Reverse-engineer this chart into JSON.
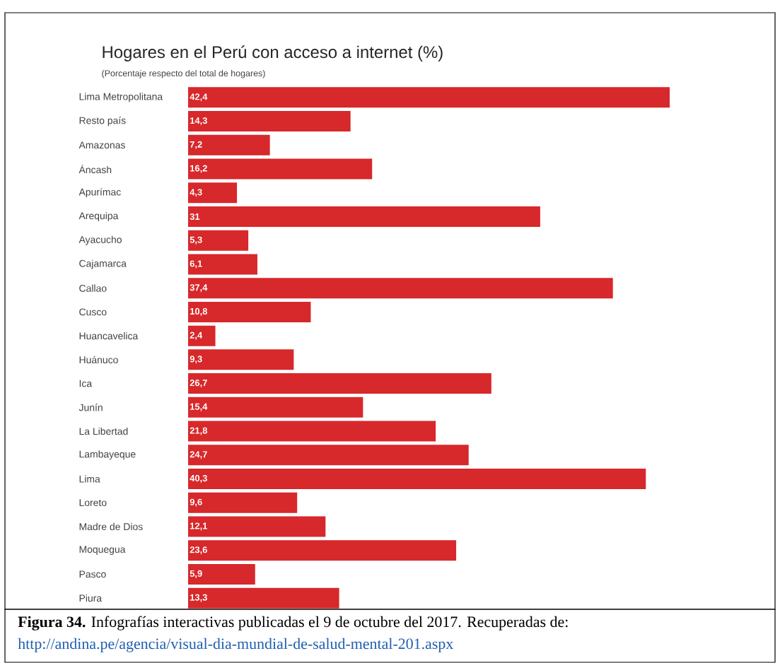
{
  "chart_data": {
    "type": "bar",
    "orientation": "horizontal",
    "title": "Hogares en el Perú con acceso a internet (%)",
    "subtitle": "(Porcentaje respecto del total de hogares)",
    "categories": [
      "Lima Metropolitana",
      "Resto país",
      "Amazonas",
      "Áncash",
      "Apurímac",
      "Arequipa",
      "Ayacucho",
      "Cajamarca",
      "Callao",
      "Cusco",
      "Huancavelica",
      "Huánuco",
      "Ica",
      "Junín",
      "La Libertad",
      "Lambayeque",
      "Lima",
      "Loreto",
      "Madre de Dios",
      "Moquegua",
      "Pasco",
      "Piura"
    ],
    "values": [
      42.4,
      14.3,
      7.2,
      16.2,
      4.3,
      31,
      5.3,
      6.1,
      37.4,
      10.8,
      2.4,
      9.3,
      26.7,
      15.4,
      21.8,
      24.7,
      40.3,
      9.6,
      12.1,
      23.6,
      5.9,
      13.3
    ],
    "value_labels": [
      "42,4",
      "14,3",
      "7,2",
      "16,2",
      "4,3",
      "31",
      "5,3",
      "6,1",
      "37,4",
      "10,8",
      "2,4",
      "9,3",
      "26,7",
      "15,4",
      "21,8",
      "24,7",
      "40,3",
      "9,6",
      "12,1",
      "23,6",
      "5,9",
      "13,3"
    ],
    "color": "#d7282b",
    "annotations": [
      "**Figura 34.** Infografías interactivas publicadas el 9 de octubre del 2017. Recuperadas de:",
      "http://andina.pe/agencia/visual-dia-mundial-de-salud-mental-201.aspx"
    ]
  }
}
